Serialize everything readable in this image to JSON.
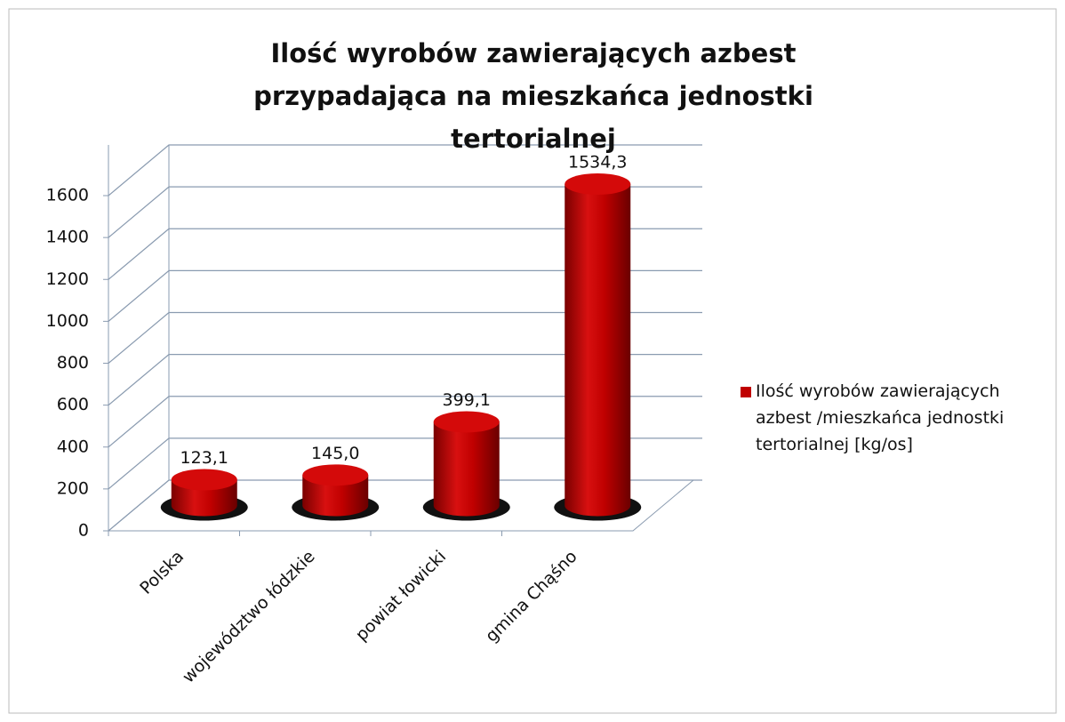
{
  "chart_data": {
    "type": "bar3d",
    "title": "Ilość wyrobów zawierających azbest przypadająca na mieszkańca jednostki tertorialnej",
    "categories": [
      "Polska",
      "województwo łódzkie",
      "powiat łowicki",
      "gmina Chąśno"
    ],
    "series": [
      {
        "name": "Ilość wyrobów zawierających azbest /mieszkańca jednostki tertorialnej [kg/os]",
        "color": "#c00000",
        "values": [
          123.1,
          145.0,
          399.1,
          1534.3
        ],
        "value_labels": [
          "123,1",
          "145,0",
          "399,1",
          "1534,3"
        ]
      }
    ],
    "ylim": [
      0,
      1600
    ],
    "yticks": [
      0,
      200,
      400,
      600,
      800,
      1000,
      1200,
      1400,
      1600
    ],
    "grid": true,
    "legend": "right"
  }
}
